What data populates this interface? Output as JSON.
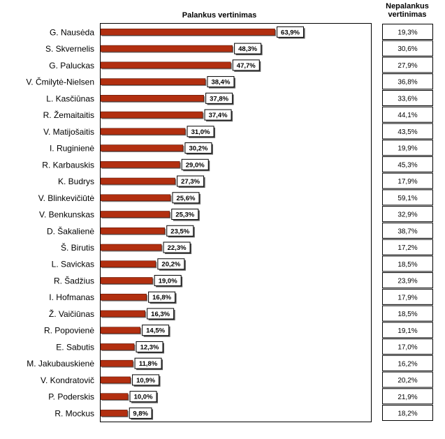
{
  "chart_data": {
    "type": "bar",
    "orientation": "horizontal",
    "title": "Palankus vertinimas",
    "right_column_title": "Nepalankus vertinimas",
    "xlim": [
      0,
      100
    ],
    "grid": false,
    "categories": [
      "G. Nausėda",
      "S. Skvernelis",
      "G. Paluckas",
      "V. Čmilytė-Nielsen",
      "L. Kasčiūnas",
      "R. Žemaitaitis",
      "V. Matijošaitis",
      "I. Ruginienė",
      "R. Karbauskis",
      "K. Budrys",
      "V. Blinkevičiūtė",
      "V. Benkunskas",
      "D. Šakalienė",
      "Š. Birutis",
      "L. Savickas",
      "R. Šadžius",
      "I. Hofmanas",
      "Ž. Vaičiūnas",
      "R. Popovienė",
      "E. Sabutis",
      "M. Jakubauskienė",
      "V. Kondratovič",
      "P. Poderskis",
      "R. Mockus"
    ],
    "series": [
      {
        "values": [
          63.9,
          48.3,
          47.7,
          38.4,
          37.8,
          37.4,
          31.0,
          30.2,
          29.0,
          27.3,
          25.6,
          25.3,
          23.5,
          22.3,
          20.2,
          19.0,
          16.8,
          16.3,
          14.5,
          12.3,
          11.8,
          10.9,
          10.0,
          9.8
        ],
        "labels": [
          "63,9%",
          "48,3%",
          "47,7%",
          "38,4%",
          "37,8%",
          "37,4%",
          "31,0%",
          "30,2%",
          "29,0%",
          "27,3%",
          "25,6%",
          "25,3%",
          "23,5%",
          "22,3%",
          "20,2%",
          "19,0%",
          "16,8%",
          "16,3%",
          "14,5%",
          "12,3%",
          "11,8%",
          "10,9%",
          "10,0%",
          "9,8%"
        ]
      },
      {
        "values": [
          19.3,
          30.6,
          27.9,
          36.8,
          33.6,
          44.1,
          43.5,
          19.9,
          45.3,
          17.9,
          59.1,
          32.9,
          38.7,
          17.2,
          18.5,
          23.9,
          17.9,
          18.5,
          19.1,
          17.0,
          16.2,
          20.2,
          21.9,
          18.2
        ],
        "labels": [
          "19,3%",
          "30,6%",
          "27,9%",
          "36,8%",
          "33,6%",
          "44,1%",
          "43,5%",
          "19,9%",
          "45,3%",
          "17,9%",
          "59,1%",
          "32,9%",
          "38,7%",
          "17,2%",
          "18,5%",
          "23,9%",
          "17,9%",
          "18,5%",
          "19,1%",
          "17,0%",
          "16,2%",
          "20,2%",
          "21,9%",
          "18,2%"
        ]
      }
    ],
    "bar_color": "#b22f10"
  }
}
